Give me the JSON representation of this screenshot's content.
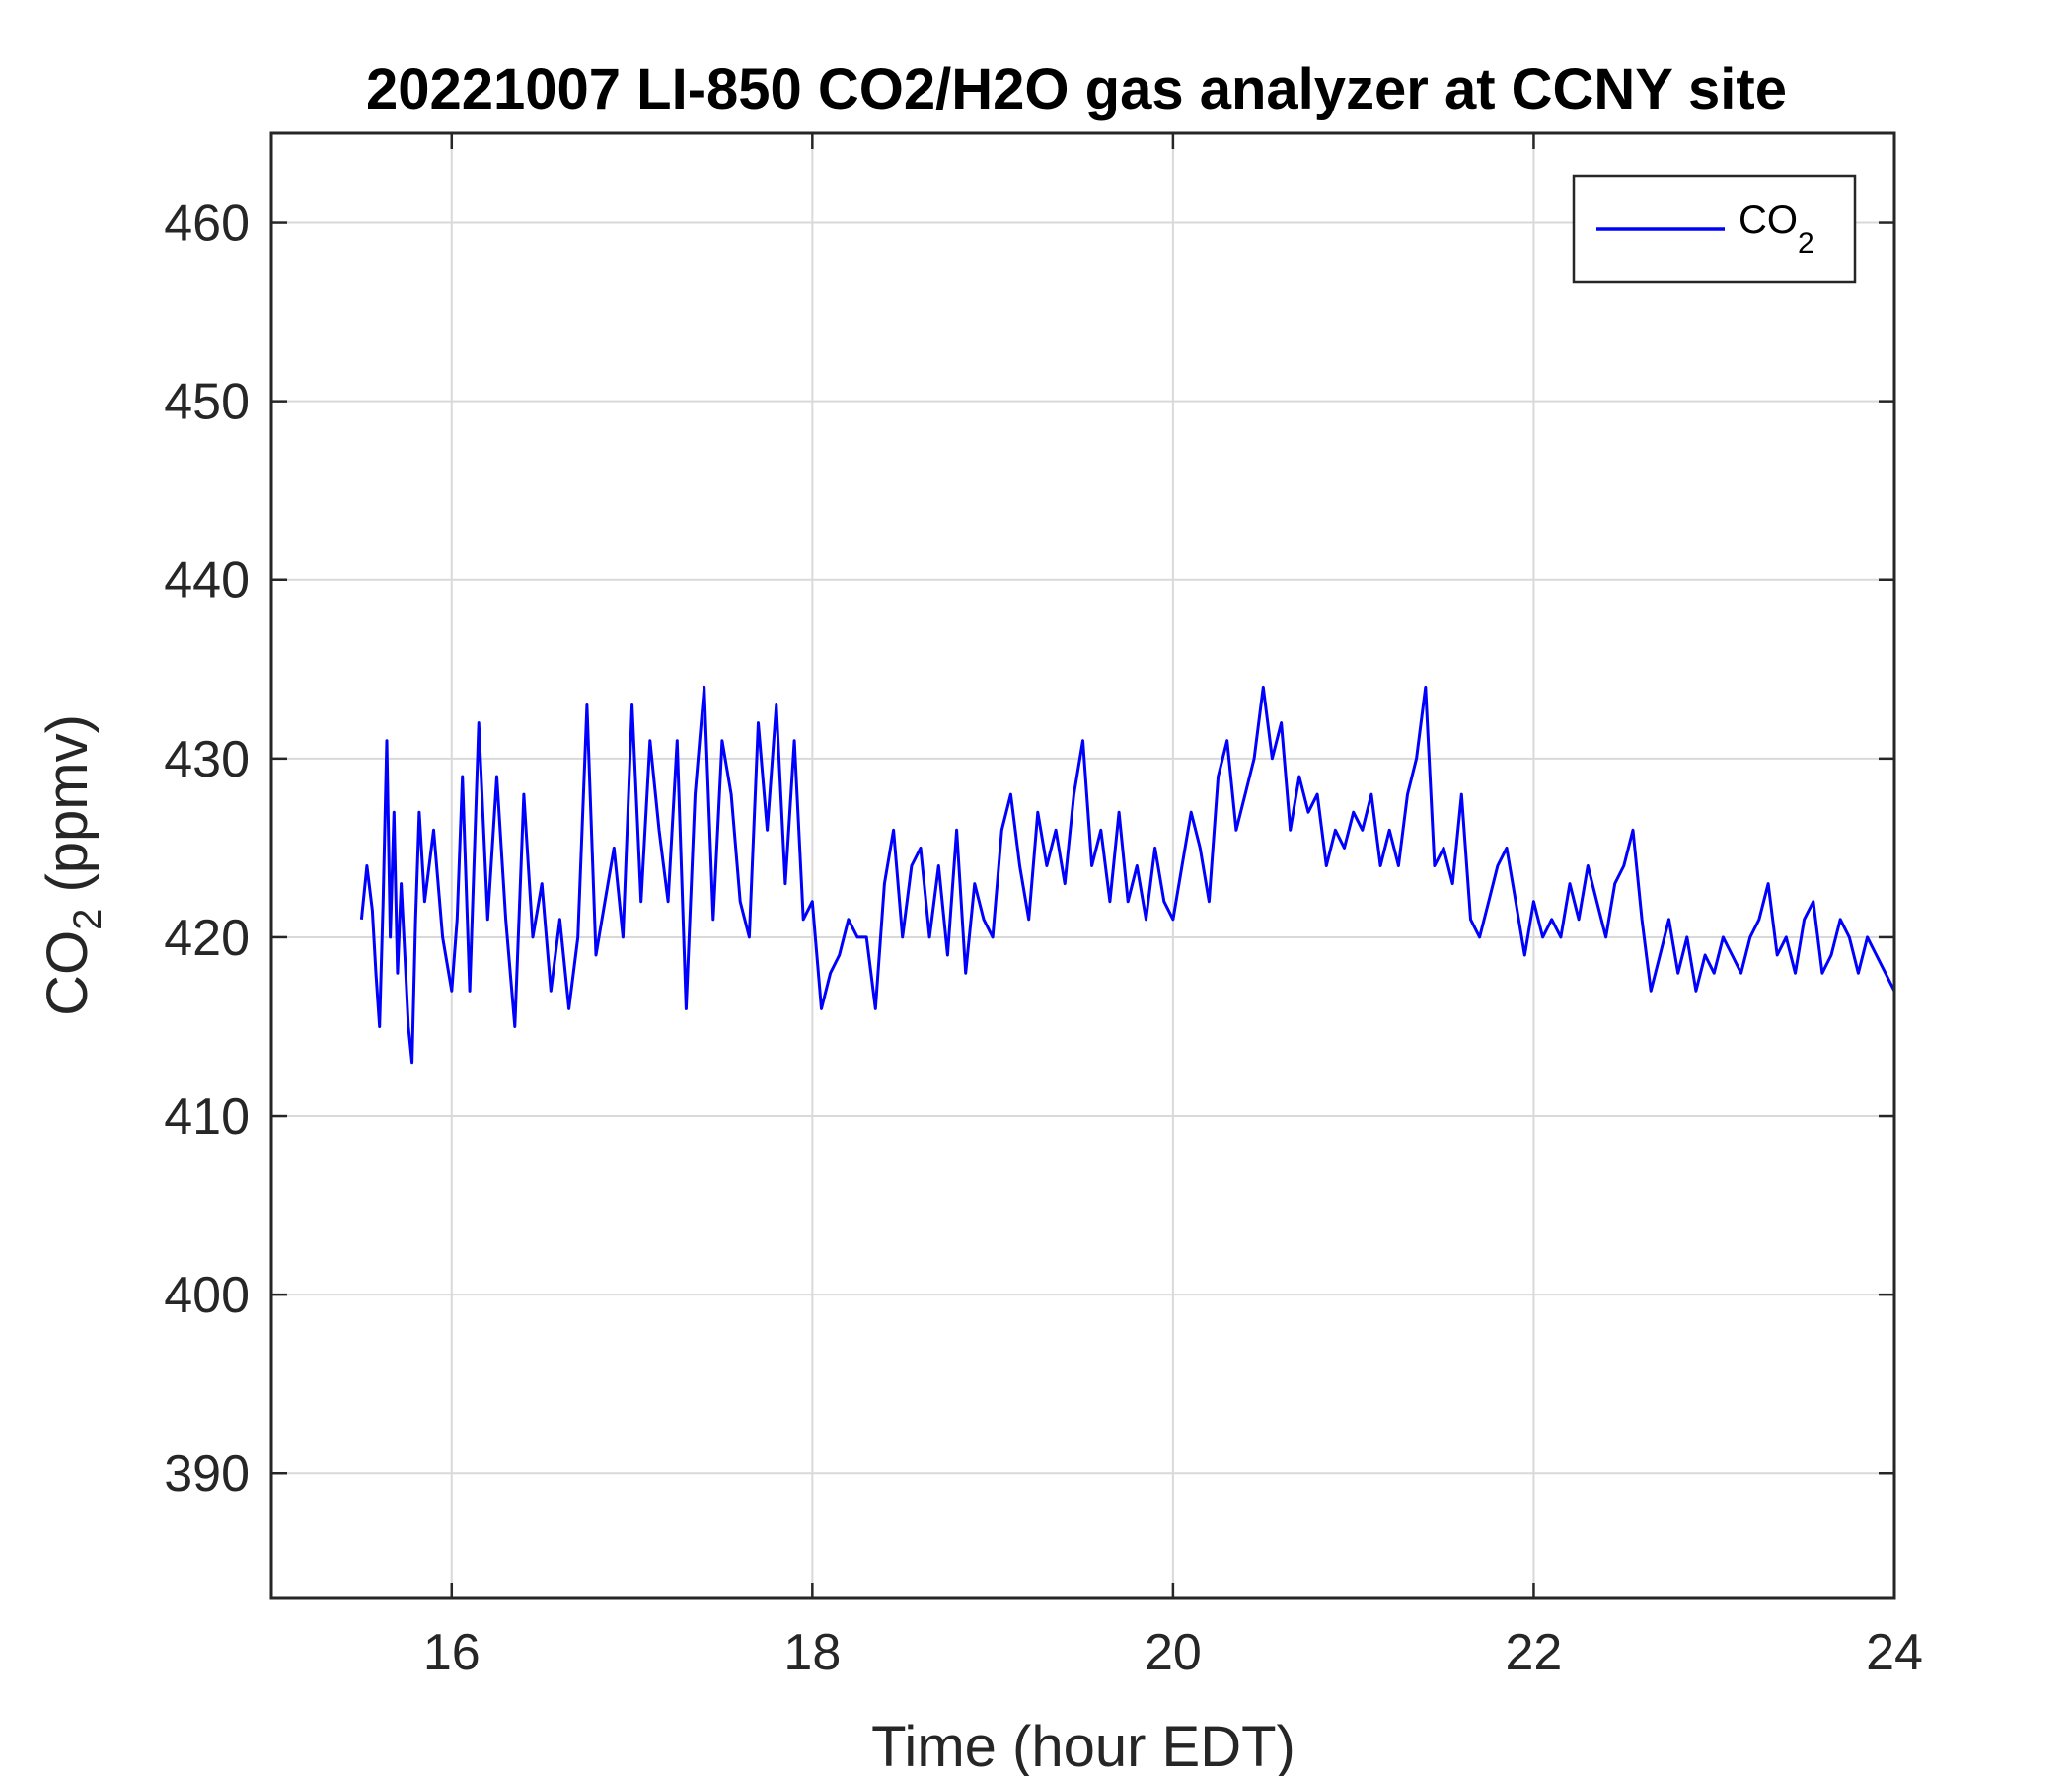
{
  "chart_data": {
    "type": "line",
    "title": "20221007 LI-850 CO2/H2O gas analyzer at CCNY site",
    "xlabel": "Time (hour EDT)",
    "ylabel": {
      "base": "CO",
      "sub": "2",
      "rest": " (ppmv)"
    },
    "xlim": [
      15,
      24
    ],
    "ylim": [
      383,
      465
    ],
    "xticks": [
      "16",
      "18",
      "20",
      "22",
      "24"
    ],
    "yticks": [
      "390",
      "400",
      "410",
      "420",
      "430",
      "440",
      "450",
      "460"
    ],
    "grid": true,
    "legend_position": "top-right",
    "series": [
      {
        "name": {
          "base": "CO",
          "sub": "2"
        },
        "color": "#0000ff",
        "x": [
          15.5,
          15.53,
          15.56,
          15.58,
          15.6,
          15.62,
          15.64,
          15.66,
          15.68,
          15.7,
          15.72,
          15.74,
          15.76,
          15.78,
          15.8,
          15.82,
          15.85,
          15.9,
          15.95,
          16.0,
          16.03,
          16.06,
          16.1,
          16.15,
          16.2,
          16.25,
          16.3,
          16.35,
          16.4,
          16.45,
          16.5,
          16.55,
          16.6,
          16.65,
          16.7,
          16.75,
          16.8,
          16.85,
          16.9,
          16.95,
          17.0,
          17.05,
          17.1,
          17.15,
          17.2,
          17.25,
          17.3,
          17.35,
          17.4,
          17.45,
          17.5,
          17.55,
          17.6,
          17.65,
          17.7,
          17.75,
          17.8,
          17.85,
          17.9,
          17.95,
          18.0,
          18.05,
          18.1,
          18.15,
          18.2,
          18.25,
          18.3,
          18.35,
          18.4,
          18.45,
          18.5,
          18.55,
          18.6,
          18.65,
          18.7,
          18.75,
          18.8,
          18.85,
          18.9,
          18.95,
          19.0,
          19.05,
          19.1,
          19.15,
          19.2,
          19.25,
          19.3,
          19.35,
          19.4,
          19.45,
          19.5,
          19.55,
          19.6,
          19.65,
          19.7,
          19.75,
          19.8,
          19.85,
          19.9,
          19.95,
          20.0,
          20.05,
          20.1,
          20.15,
          20.2,
          20.25,
          20.3,
          20.35,
          20.4,
          20.45,
          20.5,
          20.55,
          20.6,
          20.65,
          20.7,
          20.75,
          20.8,
          20.85,
          20.9,
          20.95,
          21.0,
          21.05,
          21.1,
          21.15,
          21.2,
          21.25,
          21.3,
          21.35,
          21.4,
          21.45,
          21.5,
          21.55,
          21.6,
          21.65,
          21.7,
          21.75,
          21.8,
          21.85,
          21.9,
          21.95,
          22.0,
          22.05,
          22.1,
          22.15,
          22.2,
          22.25,
          22.3,
          22.35,
          22.4,
          22.45,
          22.5,
          22.55,
          22.6,
          22.65,
          22.7,
          22.75,
          22.8,
          22.85,
          22.9,
          22.95,
          23.0,
          23.05,
          23.1,
          23.15,
          23.2,
          23.25,
          23.3,
          23.35,
          23.4,
          23.45,
          23.5,
          23.55,
          23.6,
          23.65,
          23.7,
          23.75,
          23.8,
          23.85,
          23.9,
          23.95,
          24.0
        ],
        "y": [
          421,
          424,
          421.5,
          418,
          415,
          422,
          431,
          420,
          427,
          418,
          423,
          419,
          415,
          413,
          421,
          427,
          422,
          426,
          420,
          417,
          421,
          429,
          417,
          432,
          421,
          429,
          421,
          415,
          428,
          420,
          423,
          417,
          421,
          416,
          420,
          433,
          419,
          422,
          425,
          420,
          433,
          422,
          431,
          426,
          422,
          431,
          416,
          428,
          434,
          421,
          431,
          428,
          422,
          420,
          432,
          426,
          433,
          423,
          431,
          421,
          422,
          416,
          418,
          419,
          421,
          420,
          420,
          416,
          423,
          426,
          420,
          424,
          425,
          420,
          424,
          419,
          426,
          418,
          423,
          421,
          420,
          426,
          428,
          424,
          421,
          427,
          424,
          426,
          423,
          428,
          431,
          424,
          426,
          422,
          427,
          422,
          424,
          421,
          425,
          422,
          421,
          424,
          427,
          425,
          422,
          429,
          431,
          426,
          428,
          430,
          434,
          430,
          432,
          426,
          429,
          427,
          428,
          424,
          426,
          425,
          427,
          426,
          428,
          424,
          426,
          424,
          428,
          430,
          434,
          424,
          425,
          423,
          428,
          421,
          420,
          422,
          424,
          425,
          422,
          419,
          422,
          420,
          421,
          420,
          423,
          421,
          424,
          422,
          420,
          423,
          424,
          426,
          421,
          417,
          419,
          421,
          418,
          420,
          417,
          419,
          418,
          420,
          419,
          418,
          420,
          421,
          423,
          419,
          420,
          418,
          421,
          422,
          418,
          419,
          421,
          420,
          418,
          420,
          419,
          418,
          417
        ]
      }
    ]
  }
}
